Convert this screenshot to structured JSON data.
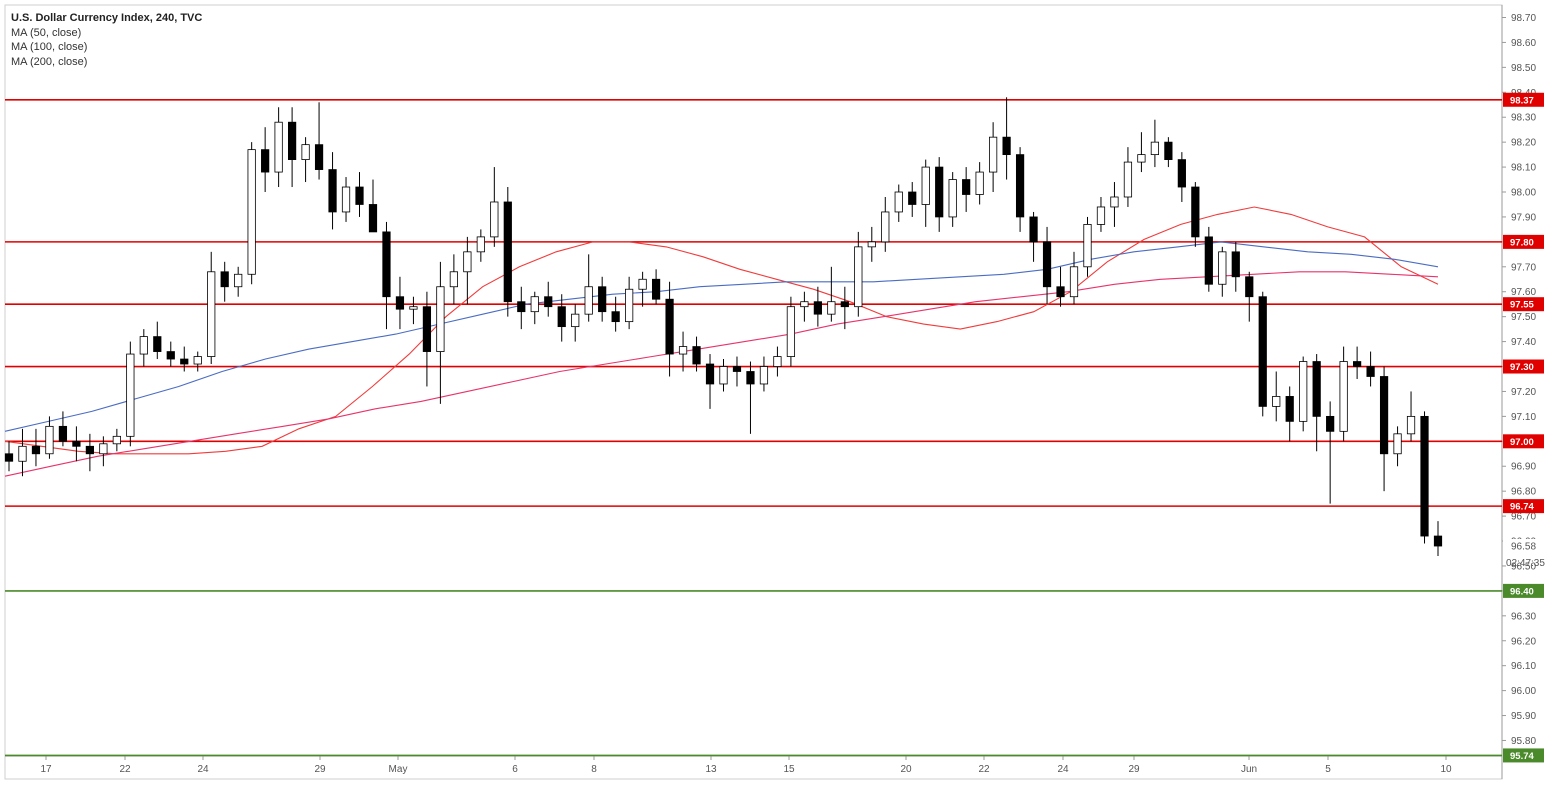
{
  "chart_data": {
    "type": "candlestick",
    "title": "U.S. Dollar Currency Index, 240, TVC",
    "indicators": [
      "MA (50, close)",
      "MA (100, close)",
      "MA (200, close)"
    ],
    "colors": {
      "ma50": "#f23b3b",
      "ma100": "#4a6cc4",
      "ma200": "#e8336b",
      "resistance": "#e00000",
      "support": "#4a8a2a",
      "candle_up_body": "#ffffff",
      "candle_down_body": "#000000"
    },
    "ylim": [
      95.71,
      98.74
    ],
    "y_ticks": [
      "98.70",
      "98.60",
      "98.50",
      "98.40",
      "98.30",
      "98.20",
      "98.10",
      "98.00",
      "97.90",
      "97.80",
      "97.70",
      "97.60",
      "97.50",
      "97.40",
      "97.30",
      "97.20",
      "97.10",
      "97.00",
      "96.90",
      "96.80",
      "96.70",
      "96.60",
      "96.50",
      "96.40",
      "96.30",
      "96.20",
      "96.10",
      "96.00",
      "95.90",
      "95.80"
    ],
    "x_ticks": [
      "17",
      "22",
      "24",
      "29",
      "May",
      "6",
      "8",
      "13",
      "15",
      "20",
      "22",
      "24",
      "29",
      "Jun",
      "5",
      "10"
    ],
    "levels": [
      {
        "value": 98.37,
        "label": "98.37",
        "kind": "resistance"
      },
      {
        "value": 97.8,
        "label": "97.80",
        "kind": "resistance"
      },
      {
        "value": 97.55,
        "label": "97.55",
        "kind": "resistance"
      },
      {
        "value": 97.3,
        "label": "97.30",
        "kind": "resistance"
      },
      {
        "value": 97.0,
        "label": "97.00",
        "kind": "resistance"
      },
      {
        "value": 96.74,
        "label": "96.74",
        "kind": "resistance"
      },
      {
        "value": 96.4,
        "label": "96.40",
        "kind": "support"
      },
      {
        "value": 95.74,
        "label": "95.74",
        "kind": "support"
      }
    ],
    "last_price": {
      "value": 96.58,
      "label": "96.58",
      "countdown": "02:47:35"
    },
    "ohlc": [
      [
        96.95,
        97.0,
        96.88,
        96.92
      ],
      [
        96.92,
        97.05,
        96.86,
        96.98
      ],
      [
        96.98,
        97.05,
        96.9,
        96.95
      ],
      [
        96.95,
        97.1,
        96.93,
        97.06
      ],
      [
        97.06,
        97.12,
        96.98,
        97.0
      ],
      [
        97.0,
        97.06,
        96.92,
        96.98
      ],
      [
        96.98,
        97.03,
        96.88,
        96.95
      ],
      [
        96.95,
        97.02,
        96.9,
        96.99
      ],
      [
        96.99,
        97.05,
        96.96,
        97.02
      ],
      [
        97.02,
        97.4,
        96.98,
        97.35
      ],
      [
        97.35,
        97.45,
        97.3,
        97.42
      ],
      [
        97.42,
        97.48,
        97.33,
        97.36
      ],
      [
        97.36,
        97.4,
        97.3,
        97.33
      ],
      [
        97.33,
        97.38,
        97.28,
        97.31
      ],
      [
        97.31,
        97.36,
        97.28,
        97.34
      ],
      [
        97.34,
        97.76,
        97.31,
        97.68
      ],
      [
        97.68,
        97.72,
        97.56,
        97.62
      ],
      [
        97.62,
        97.7,
        97.58,
        97.67
      ],
      [
        97.67,
        98.2,
        97.63,
        98.17
      ],
      [
        98.17,
        98.26,
        98.0,
        98.08
      ],
      [
        98.08,
        98.34,
        98.02,
        98.28
      ],
      [
        98.28,
        98.34,
        98.02,
        98.13
      ],
      [
        98.13,
        98.22,
        98.04,
        98.19
      ],
      [
        98.19,
        98.36,
        98.05,
        98.09
      ],
      [
        98.09,
        98.16,
        97.85,
        97.92
      ],
      [
        97.92,
        98.06,
        97.88,
        98.02
      ],
      [
        98.02,
        98.08,
        97.9,
        97.95
      ],
      [
        97.95,
        98.05,
        97.85,
        97.84
      ],
      [
        97.84,
        97.88,
        97.45,
        97.58
      ],
      [
        97.58,
        97.66,
        97.45,
        97.53
      ],
      [
        97.53,
        97.58,
        97.47,
        97.54
      ],
      [
        97.54,
        97.6,
        97.22,
        97.36
      ],
      [
        97.36,
        97.72,
        97.15,
        97.62
      ],
      [
        97.62,
        97.75,
        97.55,
        97.68
      ],
      [
        97.68,
        97.82,
        97.55,
        97.76
      ],
      [
        97.76,
        97.85,
        97.72,
        97.82
      ],
      [
        97.82,
        98.1,
        97.78,
        97.96
      ],
      [
        97.96,
        98.02,
        97.5,
        97.56
      ],
      [
        97.56,
        97.62,
        97.45,
        97.52
      ],
      [
        97.52,
        97.6,
        97.47,
        97.58
      ],
      [
        97.58,
        97.64,
        97.5,
        97.54
      ],
      [
        97.54,
        97.59,
        97.4,
        97.46
      ],
      [
        97.46,
        97.55,
        97.4,
        97.51
      ],
      [
        97.51,
        97.75,
        97.48,
        97.62
      ],
      [
        97.62,
        97.66,
        97.48,
        97.52
      ],
      [
        97.52,
        97.58,
        97.44,
        97.48
      ],
      [
        97.48,
        97.66,
        97.45,
        97.61
      ],
      [
        97.61,
        97.68,
        97.54,
        97.65
      ],
      [
        97.65,
        97.69,
        97.55,
        97.57
      ],
      [
        97.57,
        97.64,
        97.26,
        97.35
      ],
      [
        97.35,
        97.44,
        97.28,
        97.38
      ],
      [
        97.38,
        97.42,
        97.28,
        97.31
      ],
      [
        97.31,
        97.35,
        97.13,
        97.23
      ],
      [
        97.23,
        97.33,
        97.2,
        97.3
      ],
      [
        97.3,
        97.34,
        97.22,
        97.28
      ],
      [
        97.28,
        97.32,
        97.03,
        97.23
      ],
      [
        97.23,
        97.34,
        97.2,
        97.3
      ],
      [
        97.3,
        97.38,
        97.26,
        97.34
      ],
      [
        97.34,
        97.58,
        97.3,
        97.54
      ],
      [
        97.54,
        97.6,
        97.48,
        97.56
      ],
      [
        97.56,
        97.62,
        97.46,
        97.51
      ],
      [
        97.51,
        97.7,
        97.48,
        97.56
      ],
      [
        97.56,
        97.62,
        97.45,
        97.54
      ],
      [
        97.54,
        97.84,
        97.5,
        97.78
      ],
      [
        97.78,
        97.86,
        97.72,
        97.8
      ],
      [
        97.8,
        97.98,
        97.76,
        97.92
      ],
      [
        97.92,
        98.03,
        97.88,
        98.0
      ],
      [
        98.0,
        98.04,
        97.9,
        97.95
      ],
      [
        97.95,
        98.13,
        97.86,
        98.1
      ],
      [
        98.1,
        98.14,
        97.84,
        97.9
      ],
      [
        97.9,
        98.08,
        97.86,
        98.05
      ],
      [
        98.05,
        98.1,
        97.92,
        97.99
      ],
      [
        97.99,
        98.12,
        97.95,
        98.08
      ],
      [
        98.08,
        98.28,
        98.0,
        98.22
      ],
      [
        98.22,
        98.38,
        98.05,
        98.15
      ],
      [
        98.15,
        98.18,
        97.84,
        97.9
      ],
      [
        97.9,
        97.92,
        97.72,
        97.8
      ],
      [
        97.8,
        97.86,
        97.55,
        97.62
      ],
      [
        97.62,
        97.7,
        97.54,
        97.58
      ],
      [
        97.58,
        97.76,
        97.55,
        97.7
      ],
      [
        97.7,
        97.9,
        97.66,
        97.87
      ],
      [
        97.87,
        97.98,
        97.84,
        97.94
      ],
      [
        97.94,
        98.04,
        97.86,
        97.98
      ],
      [
        97.98,
        98.18,
        97.94,
        98.12
      ],
      [
        98.12,
        98.24,
        98.08,
        98.15
      ],
      [
        98.15,
        98.29,
        98.1,
        98.2
      ],
      [
        98.2,
        98.22,
        98.1,
        98.13
      ],
      [
        98.13,
        98.16,
        97.96,
        98.02
      ],
      [
        98.02,
        98.04,
        97.78,
        97.82
      ],
      [
        97.82,
        97.86,
        97.6,
        97.63
      ],
      [
        97.63,
        97.78,
        97.58,
        97.76
      ],
      [
        97.76,
        97.8,
        97.6,
        97.66
      ],
      [
        97.66,
        97.68,
        97.48,
        97.58
      ],
      [
        97.58,
        97.6,
        97.1,
        97.14
      ],
      [
        97.14,
        97.28,
        97.08,
        97.18
      ],
      [
        97.18,
        97.22,
        97.0,
        97.08
      ],
      [
        97.08,
        97.34,
        97.04,
        97.32
      ],
      [
        97.32,
        97.35,
        96.96,
        97.1
      ],
      [
        97.1,
        97.16,
        96.75,
        97.04
      ],
      [
        97.04,
        97.38,
        97.0,
        97.32
      ],
      [
        97.32,
        97.38,
        97.25,
        97.3
      ],
      [
        97.3,
        97.36,
        97.22,
        97.26
      ],
      [
        97.26,
        97.3,
        96.8,
        96.95
      ],
      [
        96.95,
        97.06,
        96.9,
        97.03
      ],
      [
        97.03,
        97.2,
        97.0,
        97.1
      ],
      [
        97.1,
        97.12,
        96.59,
        96.62
      ],
      [
        96.62,
        96.68,
        96.54,
        96.58
      ]
    ],
    "ma50": [
      97.0,
      96.98,
      96.96,
      96.95,
      96.95,
      96.95,
      96.96,
      96.98,
      97.05,
      97.1,
      97.22,
      97.35,
      97.5,
      97.62,
      97.7,
      97.76,
      97.8,
      97.8,
      97.78,
      97.74,
      97.69,
      97.65,
      97.61,
      97.56,
      97.5,
      97.47,
      97.45,
      97.48,
      97.52,
      97.6,
      97.72,
      97.81,
      97.87,
      97.91,
      97.94,
      97.91,
      97.86,
      97.82,
      97.7,
      97.63
    ],
    "ma100": [
      97.04,
      97.08,
      97.12,
      97.17,
      97.22,
      97.28,
      97.33,
      97.37,
      97.4,
      97.43,
      97.47,
      97.51,
      97.55,
      97.57,
      97.59,
      97.6,
      97.62,
      97.63,
      97.64,
      97.64,
      97.64,
      97.65,
      97.66,
      97.67,
      97.69,
      97.73,
      97.76,
      97.78,
      97.8,
      97.78,
      97.76,
      97.75,
      97.73,
      97.7
    ],
    "ma200": [
      96.86,
      96.9,
      96.94,
      96.97,
      97.0,
      97.03,
      97.06,
      97.09,
      97.13,
      97.16,
      97.2,
      97.24,
      97.28,
      97.31,
      97.34,
      97.37,
      97.4,
      97.43,
      97.47,
      97.5,
      97.53,
      97.56,
      97.58,
      97.6,
      97.63,
      97.65,
      97.66,
      97.67,
      97.68,
      97.68,
      97.67,
      97.66
    ]
  }
}
